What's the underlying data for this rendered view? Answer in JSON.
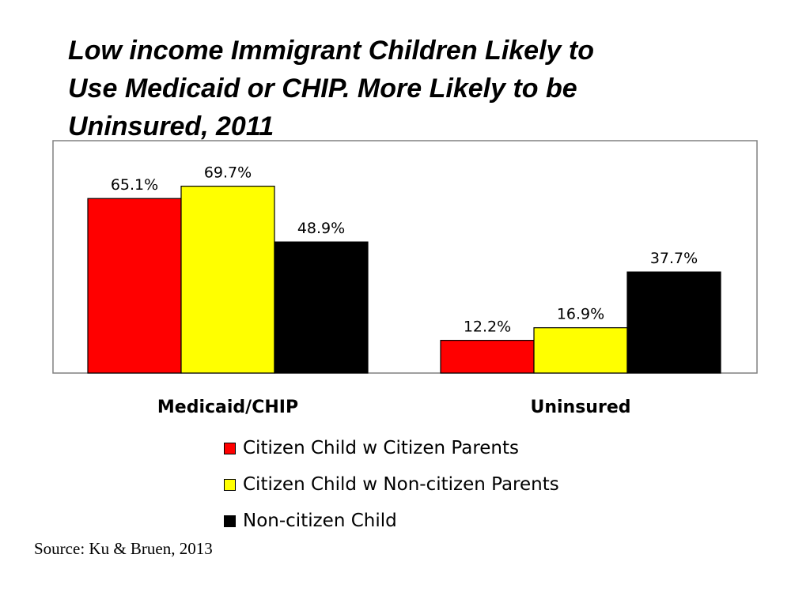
{
  "title_lines": [
    "Low income Immigrant Children Likely to",
    "Use Medicaid or CHIP. More Likely to be",
    "Uninsured, 2011"
  ],
  "source": "Source: Ku & Bruen, 2013",
  "chart_data": {
    "type": "bar",
    "categories": [
      "Medicaid/CHIP",
      "Uninsured"
    ],
    "series": [
      {
        "name": "Citizen Child w Citizen Parents",
        "values": [
          65.1,
          12.2
        ],
        "color": "#ff0000"
      },
      {
        "name": "Citizen Child w Non-citizen Parents",
        "values": [
          69.7,
          16.9
        ],
        "color": "#ffff00"
      },
      {
        "name": "Non-citizen Child",
        "values": [
          48.9,
          37.7
        ],
        "color": "#000000"
      }
    ],
    "value_labels": [
      [
        "65.1%",
        "12.2%"
      ],
      [
        "69.7%",
        "16.9%"
      ],
      [
        "48.9%",
        "37.7%"
      ]
    ],
    "ylim": [
      0,
      80
    ],
    "grid": false,
    "legend_position": "bottom"
  }
}
